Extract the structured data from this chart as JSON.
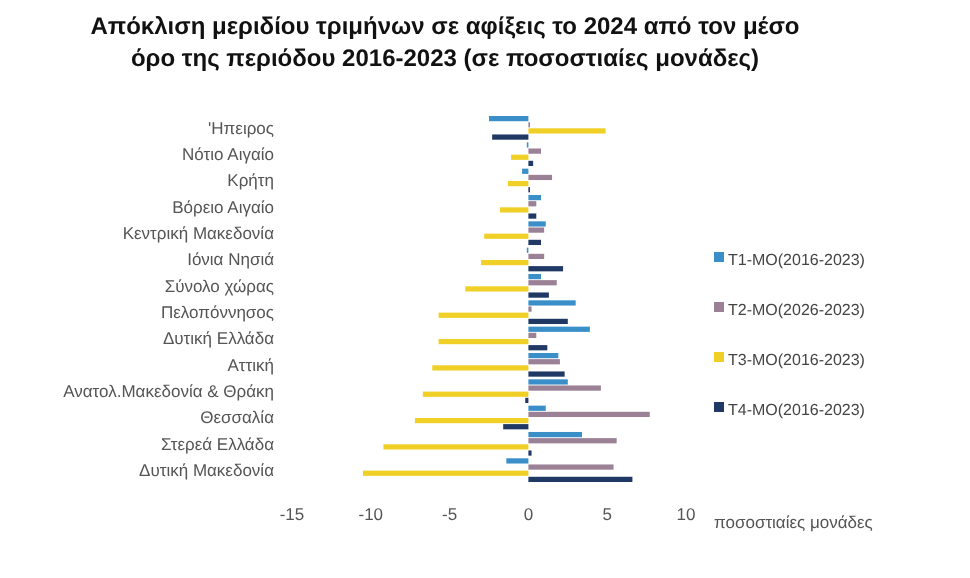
{
  "chart_data": {
    "type": "bar",
    "orientation": "horizontal",
    "title": "Απόκλιση μεριδίου τριμήνων σε αφίξεις το 2024 από τον μέσο όρο της περιόδου 2016-2023 (σε ποσοστιαίες μονάδες)",
    "xlabel": "ποσοστιαίες μονάδες",
    "categories": [
      "'Ηπειρος",
      "Νότιο Αιγαίο",
      "Κρήτη",
      "Βόρειο Αιγαίο",
      "Κεντρική Μακεδονία",
      "Ιόνια Νησιά",
      "Σύνολο χώρας",
      "Πελοπόννησος",
      "Δυτική Ελλάδα",
      "Αττική",
      "Ανατολ.Μακεδονία & Θράκη",
      "Θεσσαλία",
      "Στερεά Ελλάδα ",
      "Δυτική Μακεδονία"
    ],
    "series": [
      {
        "name": "T1-MO(2016-2023)",
        "color": "#3a8fc9",
        "values": [
          -2.5,
          -0.1,
          -0.4,
          0.8,
          1.1,
          -0.1,
          0.8,
          3.0,
          3.9,
          1.9,
          2.5,
          1.1,
          3.4,
          -1.4
        ]
      },
      {
        "name": "T2-MO(2026-2023)",
        "color": "#9b8196",
        "values": [
          0.1,
          0.8,
          1.5,
          0.5,
          1.0,
          1.0,
          1.8,
          0.2,
          0.5,
          2.0,
          4.6,
          7.7,
          5.6,
          5.4
        ]
      },
      {
        "name": "T3-MO(2016-2023)",
        "color": "#f0d027",
        "values": [
          4.9,
          -1.1,
          -1.3,
          -1.8,
          -2.8,
          -3.0,
          -4.0,
          -5.7,
          -5.7,
          -6.1,
          -6.7,
          -7.2,
          -9.2,
          -10.5
        ]
      },
      {
        "name": "T4-MO(2016-2023)",
        "color": "#1f3864",
        "values": [
          -2.3,
          0.3,
          0.1,
          0.5,
          0.8,
          2.2,
          1.3,
          2.5,
          1.2,
          2.3,
          -0.2,
          -1.6,
          0.2,
          6.6
        ]
      }
    ],
    "xlim": [
      -15,
      10
    ],
    "xticks": [
      -15,
      -10,
      -5,
      0,
      5,
      10
    ],
    "grid": false,
    "legend": "right"
  }
}
